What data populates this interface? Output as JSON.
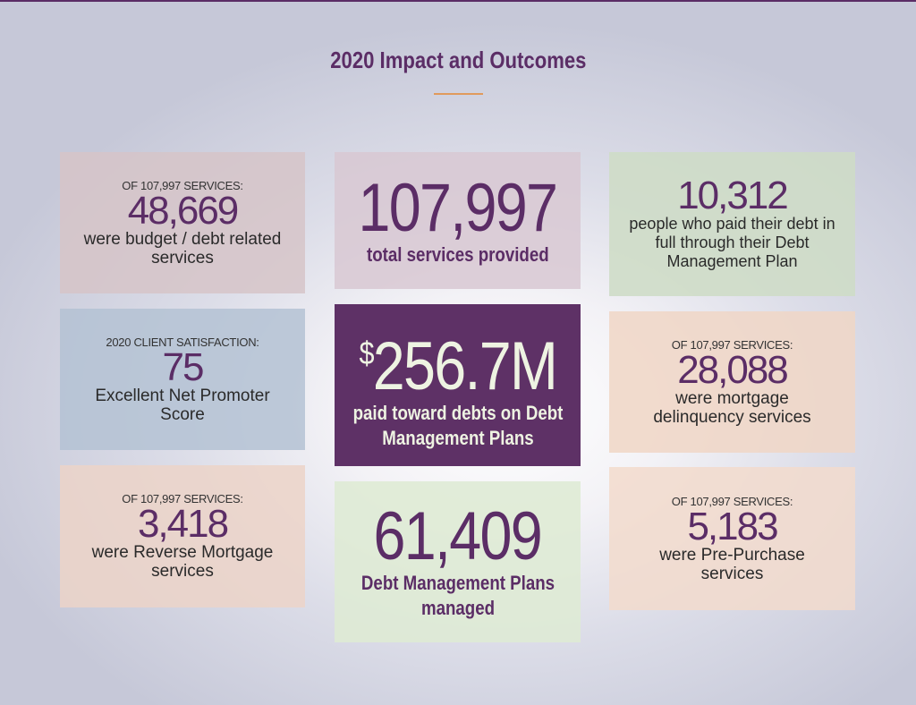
{
  "title": "2020 Impact and Outcomes",
  "cards": {
    "budget": {
      "pre": "OF 107,997 SERVICES:",
      "num": "48,669",
      "desc": "were budget / debt related services"
    },
    "satisfaction": {
      "pre": "2020 CLIENT SATISFACTION:",
      "num": "75",
      "desc": "Excellent Net Promoter Score"
    },
    "reverse": {
      "pre": "OF 107,997 SERVICES:",
      "num": "3,418",
      "desc": "were Reverse Mortgage services"
    },
    "total": {
      "num": "107,997",
      "desc": "total services provided"
    },
    "paid": {
      "currency": "$",
      "num": "256.7M",
      "desc": "paid toward debts on Debt Management Plans"
    },
    "plans": {
      "num": "61,409",
      "desc": "Debt Management Plans managed"
    },
    "full": {
      "num": "10,312",
      "desc": "people who paid their debt in full through their Debt Management Plan"
    },
    "mortgage": {
      "pre": "OF 107,997 SERVICES:",
      "num": "28,088",
      "desc": "were mortgage delinquency services"
    },
    "prepurchase": {
      "pre": "OF 107,997 SERVICES:",
      "num": "5,183",
      "desc": "were Pre-Purchase services"
    }
  },
  "colors": {
    "brand_purple": "#5b2d66",
    "accent_orange": "#e09a5c",
    "highlight_text": "#eef3e2"
  }
}
